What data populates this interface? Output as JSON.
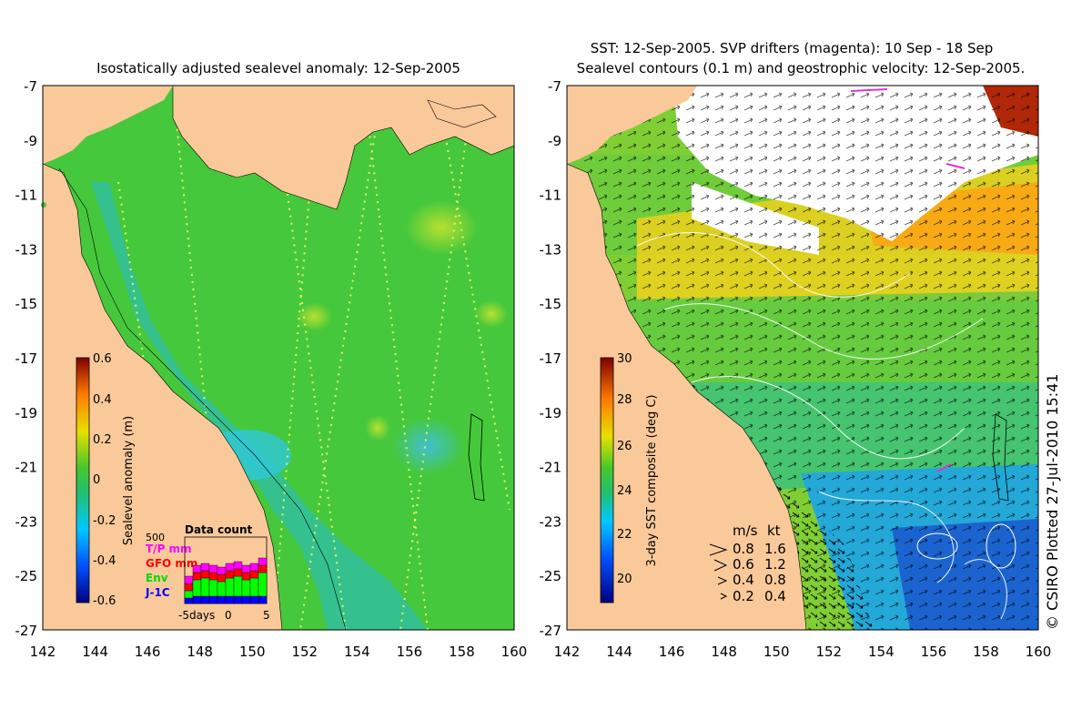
{
  "left_panel": {
    "title": "Isostatically adjusted sealevel anomaly: 12-Sep-2005",
    "colorbar": {
      "label": "Sealevel anomaly (m)",
      "ticks": [
        "0.6",
        "0.4",
        "0.2",
        "0",
        "-0.2",
        "-0.4",
        "-0.6"
      ]
    },
    "data_count": {
      "title": "Data count",
      "max_label": "500",
      "legend": [
        {
          "label": "T/P mm",
          "color": "#ff00ff"
        },
        {
          "label": "GFO mm",
          "color": "#ff0000"
        },
        {
          "label": "Env",
          "color": "#00ff00"
        },
        {
          "label": "J-1C",
          "color": "#0000ff"
        }
      ],
      "x_label_left": "-5days",
      "x_label_mid": "0",
      "x_label_right": "5"
    }
  },
  "right_panel": {
    "title_line1": "SST: 12-Sep-2005. SVP drifters (magenta): 10 Sep - 18 Sep",
    "title_line2": "Sealevel contours (0.1 m) and geostrophic velocity: 12-Sep-2005.",
    "colorbar": {
      "label": "3-day SST composite (deg C)",
      "ticks": [
        "30",
        "28",
        "26",
        "24",
        "22",
        "20"
      ]
    },
    "velocity_legend": {
      "header_ms": "m/s",
      "header_kt": "kt",
      "rows": [
        {
          "ms": "0.8",
          "kt": "1.6"
        },
        {
          "ms": "0.6",
          "kt": "1.2"
        },
        {
          "ms": "0.4",
          "kt": "0.8"
        },
        {
          "ms": "0.2",
          "kt": "0.4"
        }
      ]
    },
    "credit": "© CSIRO Plotted 27-Jul-2010 15:41"
  },
  "axes": {
    "x_ticks": [
      "142",
      "144",
      "146",
      "148",
      "150",
      "152",
      "154",
      "156",
      "158",
      "160"
    ],
    "y_ticks": [
      "-7",
      "-9",
      "-11",
      "-13",
      "-15",
      "-17",
      "-19",
      "-21",
      "-23",
      "-25",
      "-27"
    ]
  },
  "colors": {
    "land": "#f9c99a",
    "ocean_green": "#46c83c",
    "ocean_teal": "#32bf9a",
    "cloud": "#ffffff"
  }
}
